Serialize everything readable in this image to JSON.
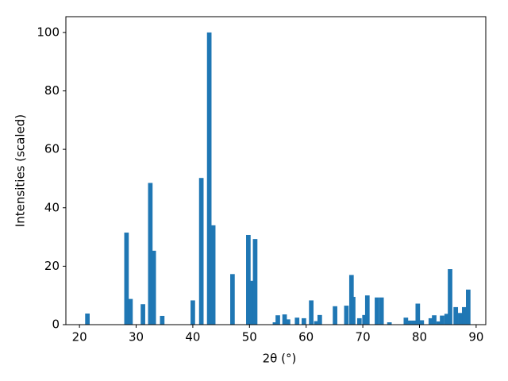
{
  "chart_data": {
    "type": "bar",
    "xlabel": "2θ (°)",
    "ylabel": "Intensities (scaled)",
    "color": "#1f77b4",
    "x": [
      21.4,
      28.3,
      29.0,
      31.2,
      32.5,
      33.1,
      34.6,
      40.0,
      41.5,
      42.9,
      43.6,
      47.0,
      49.8,
      50.3,
      51.0,
      54.5,
      55.0,
      56.2,
      56.8,
      58.4,
      59.6,
      60.9,
      61.8,
      62.4,
      65.1,
      67.1,
      68.0,
      68.3,
      69.4,
      70.3,
      70.8,
      72.5,
      73.3,
      74.7,
      77.6,
      78.2,
      79.0,
      79.7,
      80.4,
      82.0,
      82.6,
      83.4,
      84.0,
      84.8,
      85.4,
      86.4,
      87.2,
      87.9,
      88.6
    ],
    "values": [
      3.8,
      31.5,
      8.8,
      7,
      48.5,
      25.3,
      3,
      8.3,
      50.2,
      100,
      34,
      17.3,
      30.7,
      15,
      29.3,
      0.8,
      3.2,
      3.5,
      1.8,
      2.4,
      2.2,
      8.3,
      1.2,
      3.3,
      6.3,
      6.5,
      17,
      9.5,
      2.2,
      3.3,
      10,
      9.3,
      9.3,
      0.8,
      2.4,
      1.4,
      1.4,
      7.2,
      1.5,
      2.2,
      3.2,
      1.1,
      3.1,
      3.7,
      19,
      6,
      4,
      6,
      12
    ],
    "xlim": [
      17.6,
      91.7
    ],
    "ylim": [
      0,
      105.4
    ],
    "xticks": [
      20,
      30,
      40,
      50,
      60,
      70,
      80,
      90
    ],
    "yticks": [
      0,
      20,
      40,
      60,
      80,
      100
    ]
  }
}
